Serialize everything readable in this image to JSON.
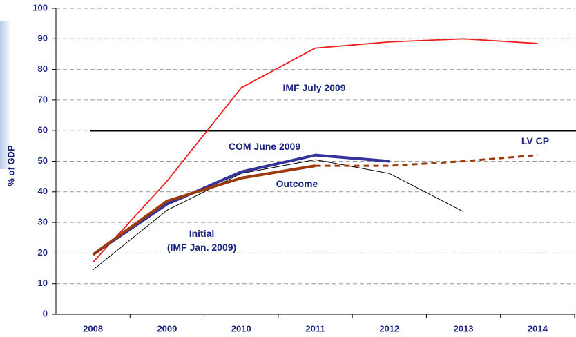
{
  "chart_data": {
    "type": "line",
    "y_label": "% of GDP",
    "categories": [
      "2008",
      "2009",
      "2010",
      "2011",
      "2012",
      "2013",
      "2014"
    ],
    "ylim": [
      0,
      100
    ],
    "yticks": [
      0,
      10,
      20,
      30,
      40,
      50,
      60,
      70,
      80,
      90,
      100
    ],
    "grid": true,
    "reference_line": 60,
    "series": [
      {
        "name": "IMF July 2009",
        "color": "#ee1c1c",
        "values": [
          17,
          43.5,
          74,
          87,
          89,
          90,
          88.5
        ]
      },
      {
        "name": "Initial\n(IMF Jan. 2009)",
        "color": "#000000",
        "values": [
          14.5,
          34,
          46,
          50.5,
          46,
          33.5,
          null
        ]
      },
      {
        "name": "COM June 2009",
        "color": "#33339a",
        "values": [
          19.5,
          36,
          46.5,
          52,
          50,
          null,
          null
        ]
      },
      {
        "name": "Outcome",
        "color": "#9c3a0e",
        "values": [
          19.5,
          37,
          44.5,
          48.5,
          null,
          null,
          null
        ]
      },
      {
        "name": "LV CP",
        "color": "#9c3a0e",
        "dashed": true,
        "values": [
          null,
          null,
          null,
          48.5,
          48.5,
          50,
          52
        ]
      }
    ]
  }
}
